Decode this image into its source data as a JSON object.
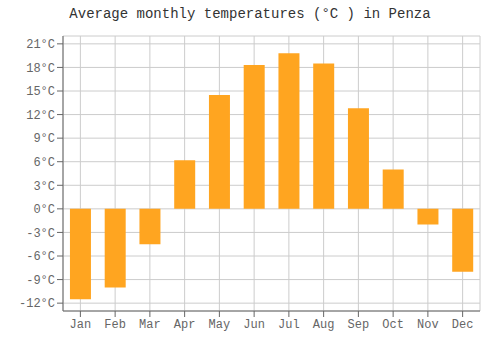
{
  "chart_data": {
    "type": "bar",
    "title": "Average monthly temperatures (°C ) in Penza",
    "categories": [
      "Jan",
      "Feb",
      "Mar",
      "Apr",
      "May",
      "Jun",
      "Jul",
      "Aug",
      "Sep",
      "Oct",
      "Nov",
      "Dec"
    ],
    "values": [
      -11.5,
      -10.0,
      -4.5,
      6.2,
      14.5,
      18.3,
      19.8,
      18.5,
      12.8,
      5.0,
      -2.0,
      -8.0
    ],
    "color": "#FFA520",
    "ylim": [
      -13,
      22
    ],
    "yticks": [
      {
        "value": -12,
        "label": "-12°C"
      },
      {
        "value": -9,
        "label": "-9°C"
      },
      {
        "value": -6,
        "label": "-6°C"
      },
      {
        "value": -3,
        "label": "-3°C"
      },
      {
        "value": 0,
        "label": "0°C"
      },
      {
        "value": 3,
        "label": "3°C"
      },
      {
        "value": 6,
        "label": "6°C"
      },
      {
        "value": 9,
        "label": "9°C"
      },
      {
        "value": 12,
        "label": "12°C"
      },
      {
        "value": 15,
        "label": "15°C"
      },
      {
        "value": 18,
        "label": "18°C"
      },
      {
        "value": 21,
        "label": "21°C"
      }
    ],
    "grid": true
  }
}
